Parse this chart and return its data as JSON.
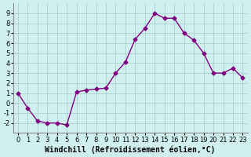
{
  "x": [
    0,
    1,
    2,
    3,
    4,
    5,
    6,
    7,
    8,
    9,
    10,
    11,
    12,
    13,
    14,
    15,
    16,
    17,
    18,
    19,
    20,
    21,
    22,
    23
  ],
  "y": [
    1,
    -0.5,
    -1.8,
    -2.0,
    -2.0,
    -2.2,
    1.1,
    1.3,
    1.4,
    1.5,
    3.0,
    4.1,
    6.4,
    7.5,
    9.0,
    8.5,
    8.5,
    7.0,
    6.3,
    5.0,
    3.0,
    3.0,
    3.5,
    2.5
  ],
  "line_color": "#800080",
  "marker": "D",
  "marker_size": 2.5,
  "linewidth": 1.0,
  "bg_color": "#d0f0f0",
  "grid_color": "#a0c8c8",
  "xlabel": "Windchill (Refroidissement éolien,°C)",
  "xlabel_fontsize": 7,
  "tick_fontsize": 6,
  "ylim": [
    -3,
    10
  ],
  "xlim": [
    -0.5,
    23.5
  ],
  "yticks": [
    -2,
    -1,
    0,
    1,
    2,
    3,
    4,
    5,
    6,
    7,
    8,
    9
  ],
  "xticks": [
    0,
    1,
    2,
    3,
    4,
    5,
    6,
    7,
    8,
    9,
    10,
    11,
    12,
    13,
    14,
    15,
    16,
    17,
    18,
    19,
    20,
    21,
    22,
    23
  ]
}
